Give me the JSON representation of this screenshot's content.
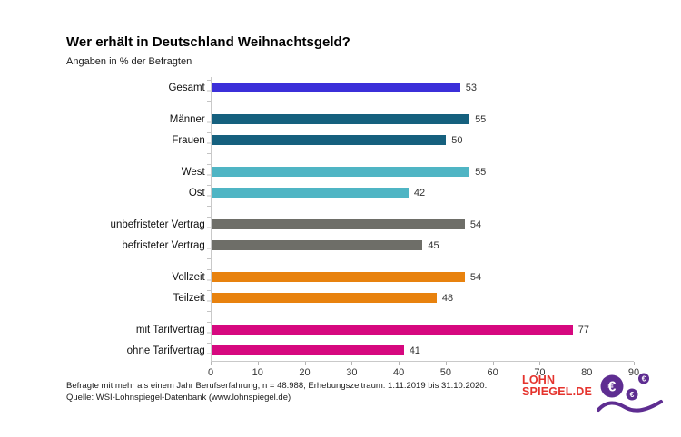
{
  "chart_data": {
    "type": "bar",
    "orientation": "horizontal",
    "title": "Wer erhält in Deutschland Weihnachtsgeld?",
    "subtitle": "Angaben in % der Befragten",
    "xlim": [
      0,
      90
    ],
    "x_ticks": [
      0,
      10,
      20,
      30,
      40,
      50,
      60,
      70,
      80,
      90
    ],
    "grid": false,
    "legend": false,
    "groups": [
      {
        "name": "gesamt",
        "color": "#3b2fd9",
        "items": [
          {
            "label": "Gesamt",
            "value": 53
          }
        ]
      },
      {
        "name": "geschlecht",
        "color": "#15607e",
        "items": [
          {
            "label": "Männer",
            "value": 55
          },
          {
            "label": "Frauen",
            "value": 50
          }
        ]
      },
      {
        "name": "region",
        "color": "#4fb5c4",
        "items": [
          {
            "label": "West",
            "value": 55
          },
          {
            "label": "Ost",
            "value": 42
          }
        ]
      },
      {
        "name": "vertrag",
        "color": "#6e6e68",
        "items": [
          {
            "label": "unbefristeter Vertrag",
            "value": 54
          },
          {
            "label": "befristeter Vertrag",
            "value": 45
          }
        ]
      },
      {
        "name": "arbeitszeit",
        "color": "#e8820e",
        "items": [
          {
            "label": "Vollzeit",
            "value": 54
          },
          {
            "label": "Teilzeit",
            "value": 48
          }
        ]
      },
      {
        "name": "tarif",
        "color": "#d6087f",
        "items": [
          {
            "label": "mit Tarifvertrag",
            "value": 77
          },
          {
            "label": "ohne Tarifvertrag",
            "value": 41
          }
        ]
      }
    ]
  },
  "footnote": {
    "line1": "Befragte mit mehr als einem Jahr Berufserfahrung; n = 48.988; Erhebungszeitraum: 1.11.2019 bis 31.10.2020.",
    "line2": "Quelle: WSI-Lohnspiegel-Datenbank  (www.lohnspiegel.de)"
  },
  "logo": {
    "line1": "LOHN",
    "line2": "SPIEGEL.DE",
    "euro_symbol": "€",
    "text_color": "#e5332d",
    "icon_color": "#5e2d91",
    "icons": [
      "euro-coin-icon",
      "wave-swoosh-icon"
    ]
  },
  "colors": {
    "axis": "#c9c9c9",
    "text": "#1a1a1a"
  }
}
